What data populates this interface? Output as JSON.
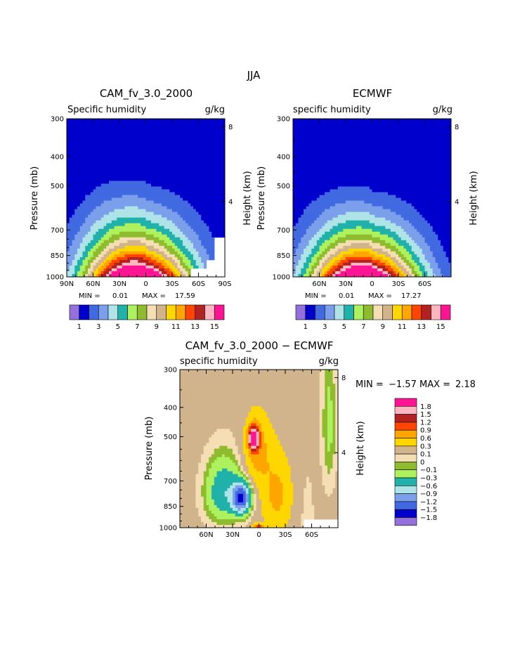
{
  "page_title": "JJA",
  "colors": {
    "q": [
      "#9370db",
      "#0000cd",
      "#4169e1",
      "#7b9fea",
      "#aee3e8",
      "#20b2aa",
      "#adf15e",
      "#8fbc2e",
      "#f5deb3",
      "#d2b48c",
      "#ffd700",
      "#ffa500",
      "#ff4500",
      "#b22222",
      "#ffb6c1",
      "#ff1493"
    ],
    "d": [
      "#9370db",
      "#0000cd",
      "#4169e1",
      "#7b9fea",
      "#aee3e8",
      "#20b2aa",
      "#adf15e",
      "#8fbc2e",
      "#f5deb3",
      "#d2b48c",
      "#ffd700",
      "#ffa500",
      "#ff4500",
      "#b22222",
      "#ffb6c1",
      "#ff1493"
    ]
  },
  "chart_data": [
    {
      "type": "heatmap",
      "title": "CAM_fv_3.0_2000",
      "left_subtitle": "Specific humidity",
      "right_subtitle": "g/kg",
      "ylabel": "Pressure (mb)",
      "y2label": "Height (km)",
      "x_ticks": [
        "90N",
        "60N",
        "30N",
        "0",
        "30S",
        "60S",
        "90S"
      ],
      "y_ticks": [
        "300",
        "400",
        "500",
        "700",
        "850",
        "1000"
      ],
      "y2_ticks": [
        "8",
        "4"
      ],
      "ylim": [
        300,
        1000
      ],
      "xlim": [
        90,
        -90
      ],
      "stats": {
        "min_label": "MIN =",
        "min": "0.01",
        "max_label": "MAX =",
        "max": "17.59"
      },
      "peak": 17.6,
      "center_lat": 8,
      "width": 40,
      "top_p": 350,
      "mask_sh_lat": -50,
      "missing_regions": [
        {
          "lat_from": -50,
          "lat_to": -90,
          "p_from": 945,
          "p_to": 1000
        }
      ]
    },
    {
      "type": "heatmap",
      "title": "ECMWF",
      "left_subtitle": "specific humidity",
      "right_subtitle": "g/kg",
      "ylabel": "Pressure (mb)",
      "y2label": "Height (km)",
      "x_ticks": [
        "60N",
        "30N",
        "0",
        "30S",
        "60S"
      ],
      "y_ticks": [
        "300",
        "400",
        "500",
        "700",
        "850",
        "1000"
      ],
      "y2_ticks": [
        "8",
        "4"
      ],
      "ylim": [
        300,
        1000
      ],
      "xlim": [
        90,
        -90
      ],
      "stats": {
        "min_label": "MIN =",
        "min": "0.01",
        "max_label": "MAX =",
        "max": "17.27"
      },
      "peak": 17.3,
      "center_lat": 8,
      "width": 40,
      "top_p": 380,
      "missing_regions": []
    },
    {
      "type": "heatmap",
      "title": "CAM_fv_3.0_2000 − ECMWF",
      "left_subtitle": "specific humidity",
      "right_subtitle": "g/kg",
      "ylabel": "Pressure (mb)",
      "y2label": "Height (km)",
      "x_ticks": [
        "60N",
        "30N",
        "0",
        "30S",
        "60S"
      ],
      "y_ticks": [
        "300",
        "400",
        "500",
        "700",
        "850",
        "1000"
      ],
      "y2_ticks": [
        "8",
        "4"
      ],
      "ylim": [
        300,
        1000
      ],
      "xlim": [
        90,
        -90
      ],
      "stats": {
        "min_label": "MIN =",
        "min": "−1.57",
        "max_label": "MAX =",
        "max": "2.18"
      },
      "missing_regions": [
        {
          "lat_from": -50,
          "lat_to": -90,
          "p_from": 930,
          "p_to": 1000
        }
      ]
    }
  ],
  "colorbar_q": {
    "labels": [
      "1",
      "3",
      "5",
      "7",
      "9",
      "11",
      "13",
      "15"
    ]
  },
  "colorbar_diff": {
    "labels": [
      "1.8",
      "1.5",
      "1.2",
      "0.9",
      "0.6",
      "0.3",
      "0.1",
      "0",
      "−0.1",
      "−0.3",
      "−0.6",
      "−0.9",
      "−1.2",
      "−1.5",
      "−1.8"
    ]
  }
}
